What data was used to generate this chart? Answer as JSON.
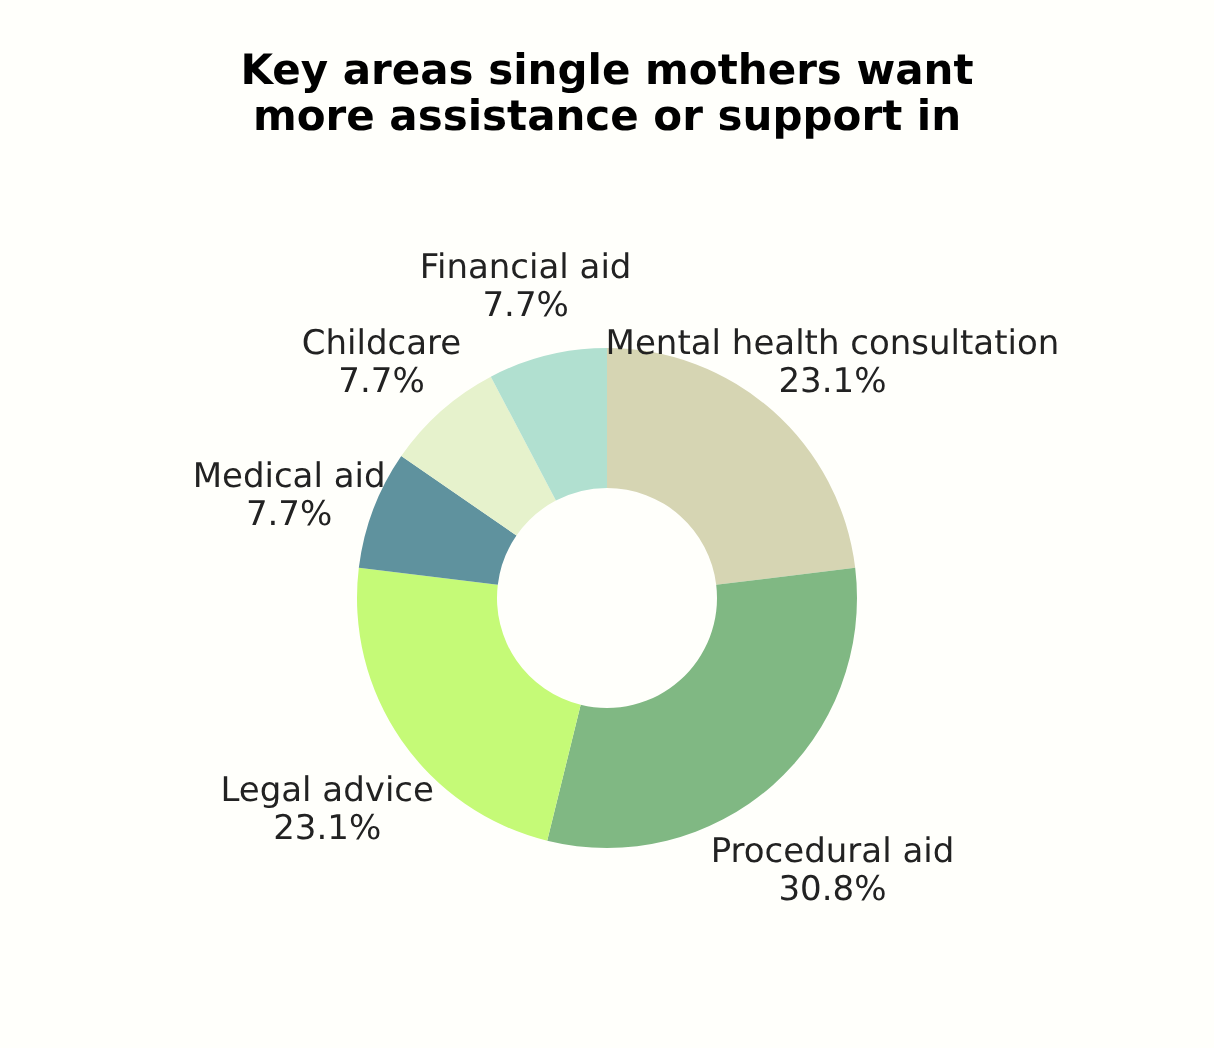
{
  "chart_data": {
    "type": "donut",
    "title": "Key areas single mothers want more assistance or support in",
    "categories": [
      "Mental health consultation",
      "Procedural aid",
      "Legal advice",
      "Medical aid",
      "Childcare",
      "Financial aid"
    ],
    "values": [
      23.1,
      30.8,
      23.1,
      7.7,
      7.7,
      7.7
    ],
    "value_labels": [
      "23.1%",
      "30.8%",
      "23.1%",
      "7.7%",
      "7.7%",
      "7.7%"
    ],
    "colors": [
      "#d6d5b3",
      "#80b883",
      "#c5fa77",
      "#5f929e",
      "#e6f2cc",
      "#b1e0d0"
    ],
    "legend": false
  }
}
